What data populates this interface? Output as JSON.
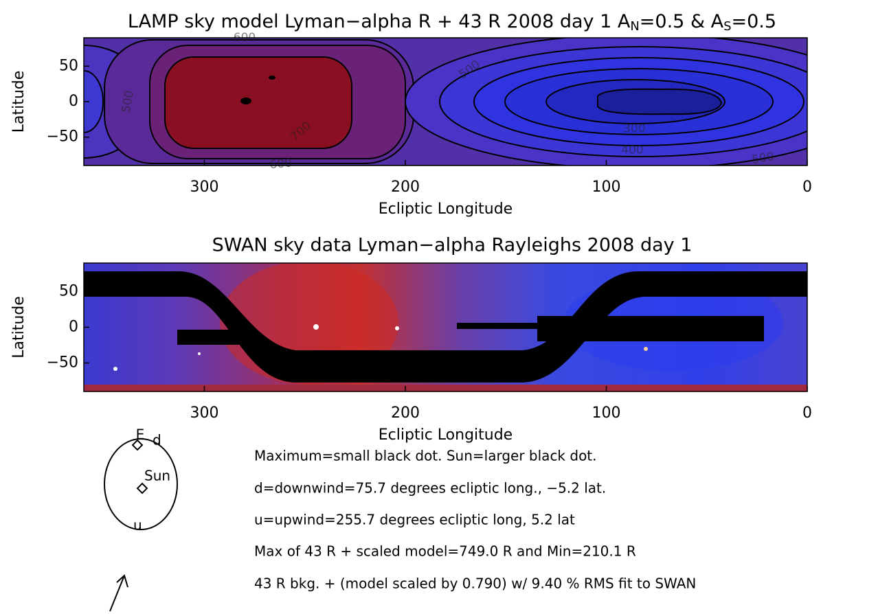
{
  "chart_data": [
    {
      "type": "contour",
      "title": [
        "LAMP sky model Lyman−alpha R + 43 R 2008 day 1 A",
        "N",
        "=0.5 & A",
        "S",
        "=0.5"
      ],
      "xlabel": "Ecliptic Longitude",
      "ylabel": "Latitude",
      "xlim": [
        360,
        0
      ],
      "xticks": [
        300,
        200,
        100,
        0
      ],
      "ylim": [
        -90,
        90
      ],
      "yticks": [
        {
          "value": -50,
          "label": "−50"
        },
        0,
        50
      ],
      "contour_levels": [
        300,
        400,
        500,
        600,
        700
      ]
    },
    {
      "type": "heatmap",
      "title": "SWAN sky data Lyman−alpha Rayleighs 2008 day 1",
      "xlabel": "Ecliptic Longitude",
      "ylabel": "Latitude",
      "xlim": [
        360,
        0
      ],
      "xticks": [
        300,
        200,
        100,
        0
      ],
      "ylim": [
        -90,
        90
      ],
      "yticks": [
        {
          "value": -50,
          "label": "−50"
        },
        0,
        50
      ]
    }
  ],
  "diagram": {
    "labels": [
      "E",
      "d",
      "Sun",
      "u"
    ]
  },
  "notes": [
    "Maximum=small black dot. Sun=larger black dot.",
    "d=downwind=75.7 degrees ecliptic long., −5.2 lat.",
    "u=upwind=255.7 degrees ecliptic long, 5.2 lat",
    "Max of 43 R + scaled model=749.0 R and Min=210.1 R",
    "43 R bkg. + (model scaled by 0.790) w/ 9.40 % RMS fit to SWAN"
  ]
}
